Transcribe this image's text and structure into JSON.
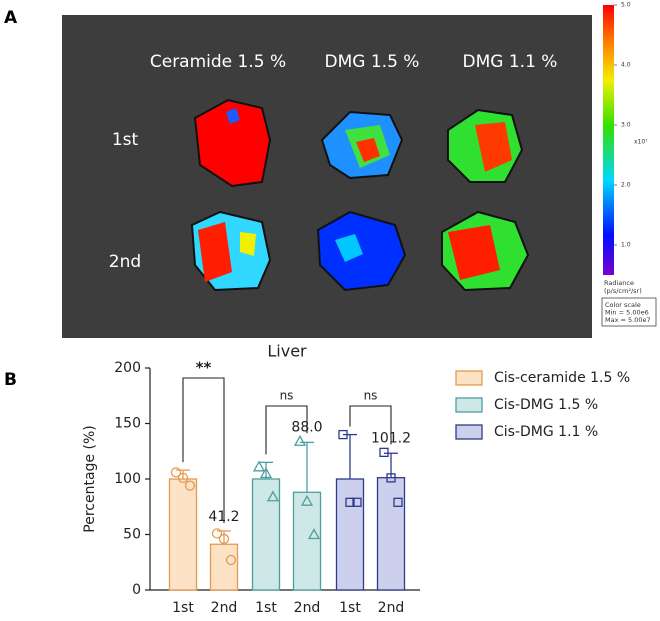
{
  "panel_labels": [
    "A",
    "B"
  ],
  "image_panel": {
    "column_labels": [
      "Ceramide 1.5 %",
      "DMG 1.5 %",
      "DMG 1.1 %"
    ],
    "row_labels": [
      "1st",
      "2nd"
    ],
    "colorbar": {
      "lim": [
        0.5,
        5
      ],
      "ticks": [
        {
          "value": 1,
          "label": "1.0"
        },
        {
          "value": 2,
          "label": "2.0"
        },
        {
          "value": 3,
          "label": "3.0"
        },
        {
          "value": 4,
          "label": "4.0"
        },
        {
          "value": 5,
          "label": "5.0"
        }
      ],
      "exponent_label": "x10⁷",
      "unit_label": [
        "Radiance",
        "(p/s/cm²/sr)"
      ],
      "scale_box": [
        "Color scale",
        "Min = 5.00e6",
        "Max = 5.00e7"
      ]
    }
  },
  "chart_data": {
    "type": "bar",
    "title": "Liver",
    "y_label": "Percentage (%)",
    "categories": [
      "1st",
      "2nd",
      "1st",
      "2nd",
      "1st",
      "2nd"
    ],
    "ylim": [
      0,
      200
    ],
    "yticks": [
      0,
      50,
      100,
      150,
      200
    ],
    "series": [
      {
        "name": "Cis-ceramide 1.5 %",
        "color": "#e39a4f",
        "fill": "#fde2c6",
        "marker": "circle",
        "values": [
          100,
          41.2,
          null,
          null,
          null,
          null
        ],
        "errors": [
          8,
          12,
          null,
          null,
          null,
          null
        ],
        "points": [
          [
            106,
            101,
            94
          ],
          [
            51,
            46,
            27
          ],
          null,
          null,
          null,
          null
        ],
        "value_labels": [
          null,
          "41.2",
          null,
          null,
          null,
          null
        ]
      },
      {
        "name": "Cis-DMG 1.5 %",
        "color": "#4f9e9e",
        "fill": "#cde8e7",
        "marker": "triangle",
        "values": [
          null,
          null,
          100,
          88,
          null,
          null
        ],
        "errors": [
          null,
          null,
          15,
          45,
          null,
          null
        ],
        "points": [
          null,
          null,
          [
            111,
            105,
            84
          ],
          [
            134,
            80,
            50
          ],
          null,
          null
        ],
        "value_labels": [
          null,
          null,
          null,
          "88.0",
          null,
          null
        ]
      },
      {
        "name": "Cis-DMG 1.1 %",
        "color": "#2e3a8c",
        "fill": "#ccd0ec",
        "marker": "square",
        "values": [
          null,
          null,
          null,
          null,
          100,
          101.2
        ],
        "errors": [
          null,
          null,
          null,
          null,
          40,
          22
        ],
        "points": [
          null,
          null,
          null,
          null,
          [
            140,
            79,
            79
          ],
          [
            124,
            101,
            79
          ]
        ],
        "value_labels": [
          null,
          null,
          null,
          null,
          null,
          "101.2"
        ]
      }
    ],
    "annotations": [
      "**",
      "ns",
      "ns"
    ]
  }
}
